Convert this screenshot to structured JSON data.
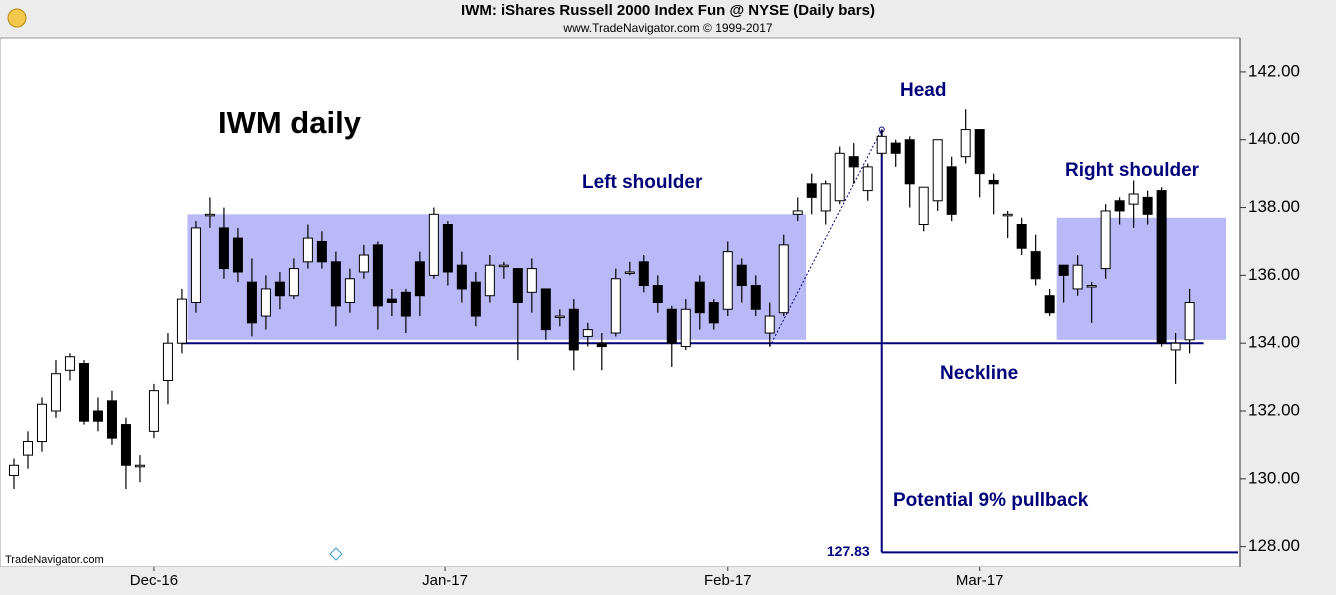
{
  "chart_data": {
    "type": "candlestick",
    "title": "IWM:  iShares Russell 2000 Index Fun @ NYSE  (Daily bars)",
    "subtitle": "www.TradeNavigator.com © 1999-2017",
    "watermark": "TradeNavigator.com",
    "up_color": "#ffffff",
    "down_color": "#000000",
    "zone_color": "#b9b9f7",
    "line_color": "#00007a",
    "open": [
      130.1,
      130.7,
      131.1,
      132.0,
      133.2,
      133.4,
      132.0,
      132.3,
      131.6,
      130.4,
      131.4,
      132.9,
      134.0,
      135.2,
      137.8,
      137.4,
      137.1,
      135.8,
      134.8,
      135.8,
      135.4,
      136.4,
      137.0,
      136.4,
      135.2,
      136.1,
      136.9,
      135.3,
      135.5,
      136.4,
      136.0,
      137.5,
      136.3,
      135.8,
      135.4,
      136.3,
      136.2,
      135.5,
      135.6,
      134.8,
      135.0,
      134.2,
      134.0,
      134.3,
      136.1,
      136.4,
      135.7,
      135.0,
      133.9,
      135.8,
      135.2,
      135.0,
      136.3,
      135.7,
      134.3,
      134.9,
      137.8,
      138.7,
      137.9,
      138.2,
      139.5,
      138.5,
      139.6,
      139.9,
      140.0,
      137.5,
      138.2,
      139.2,
      139.5,
      140.3,
      138.8,
      137.8,
      137.5,
      136.7,
      135.4,
      136.3,
      135.6,
      135.7,
      136.2,
      138.2,
      138.1,
      138.3,
      138.5,
      133.8,
      134.1
    ],
    "high": [
      130.6,
      131.4,
      132.4,
      133.5,
      133.7,
      133.5,
      132.4,
      132.6,
      131.8,
      130.7,
      132.8,
      134.3,
      135.6,
      137.6,
      138.3,
      138.0,
      137.4,
      136.5,
      136.0,
      136.1,
      136.5,
      137.5,
      137.3,
      136.7,
      136.2,
      136.9,
      137.0,
      135.6,
      135.6,
      136.7,
      138.0,
      137.6,
      136.7,
      136.1,
      136.6,
      136.4,
      136.2,
      136.5,
      135.6,
      135.0,
      135.3,
      134.6,
      134.3,
      136.2,
      136.4,
      136.6,
      136.0,
      135.1,
      135.3,
      136.0,
      135.3,
      137.0,
      136.5,
      136.0,
      135.2,
      137.2,
      138.3,
      139.0,
      138.8,
      139.8,
      139.9,
      139.3,
      140.3,
      140.0,
      140.1,
      138.6,
      140.0,
      139.5,
      140.9,
      140.3,
      139.0,
      137.9,
      137.7,
      137.2,
      135.6,
      136.3,
      136.6,
      135.8,
      138.1,
      138.3,
      138.8,
      138.5,
      138.6,
      134.3,
      135.6
    ],
    "low": [
      129.7,
      130.3,
      130.8,
      131.8,
      132.9,
      131.6,
      131.4,
      131.0,
      129.7,
      129.9,
      131.2,
      132.2,
      133.7,
      134.9,
      137.4,
      135.9,
      135.8,
      134.2,
      134.4,
      135.0,
      135.3,
      136.2,
      136.2,
      134.5,
      134.9,
      135.9,
      134.4,
      134.8,
      134.3,
      134.8,
      135.9,
      135.7,
      135.2,
      134.5,
      135.2,
      135.9,
      133.5,
      134.9,
      134.1,
      134.5,
      133.2,
      133.9,
      133.2,
      134.2,
      136.0,
      135.5,
      134.9,
      133.3,
      133.8,
      134.4,
      134.4,
      134.8,
      135.2,
      134.8,
      133.9,
      134.8,
      137.6,
      137.8,
      137.5,
      138.1,
      138.7,
      138.2,
      139.5,
      139.2,
      138.0,
      137.3,
      137.9,
      137.6,
      139.3,
      138.3,
      137.8,
      137.1,
      136.6,
      135.7,
      134.8,
      135.2,
      135.4,
      134.6,
      135.9,
      137.5,
      137.4,
      137.5,
      133.9,
      132.8,
      133.7
    ],
    "close": [
      130.4,
      131.1,
      132.2,
      133.1,
      133.6,
      131.7,
      131.7,
      131.2,
      130.4,
      130.4,
      132.6,
      134.0,
      135.3,
      137.4,
      137.8,
      136.2,
      136.1,
      134.6,
      135.6,
      135.4,
      136.2,
      137.1,
      136.4,
      135.1,
      135.9,
      136.6,
      135.1,
      135.2,
      134.8,
      135.4,
      137.8,
      136.1,
      135.6,
      134.8,
      136.3,
      136.3,
      135.2,
      136.2,
      134.4,
      134.8,
      133.8,
      134.4,
      133.9,
      135.9,
      136.1,
      135.7,
      135.2,
      134.0,
      135.0,
      134.9,
      134.6,
      136.7,
      135.7,
      135.0,
      134.8,
      136.9,
      137.9,
      138.3,
      138.7,
      139.6,
      139.2,
      139.2,
      140.1,
      139.6,
      138.7,
      138.6,
      140.0,
      137.8,
      140.3,
      139.0,
      138.7,
      137.8,
      136.8,
      135.9,
      134.9,
      136.0,
      136.3,
      135.7,
      137.9,
      137.9,
      138.4,
      137.8,
      134.0,
      134.0,
      135.2
    ],
    "xlim": [
      -1,
      87.6
    ],
    "xticks": [
      {
        "value": 10,
        "label": "Dec-16"
      },
      {
        "value": 30.8,
        "label": "Jan-17"
      },
      {
        "value": 51,
        "label": "Feb-17"
      },
      {
        "value": 69,
        "label": "Mar-17"
      }
    ],
    "ylim": [
      127.4,
      143.0
    ],
    "yticks": [
      {
        "value": 128,
        "label": "128.00"
      },
      {
        "value": 130,
        "label": "130.00"
      },
      {
        "value": 132,
        "label": "132.00"
      },
      {
        "value": 134,
        "label": "134.00"
      },
      {
        "value": 136,
        "label": "136.00"
      },
      {
        "value": 138,
        "label": "138.00"
      },
      {
        "value": 140,
        "label": "140.00"
      },
      {
        "value": 142,
        "label": "142.00"
      }
    ],
    "zones": [
      {
        "x": [
          12.4,
          56.6
        ],
        "y": [
          134.1,
          137.8
        ]
      },
      {
        "x": [
          74.5,
          86.6
        ],
        "y": [
          134.1,
          137.7
        ]
      }
    ],
    "neckline": {
      "value": 134.0,
      "x": [
        12,
        85
      ]
    },
    "head_line": {
      "from": 62,
      "to": 54
    },
    "target": 127.83,
    "annotations": [
      "IWM daily",
      "Left shoulder",
      "Head",
      "Right shoulder",
      "Neckline",
      "Potential 9% pullback"
    ]
  }
}
